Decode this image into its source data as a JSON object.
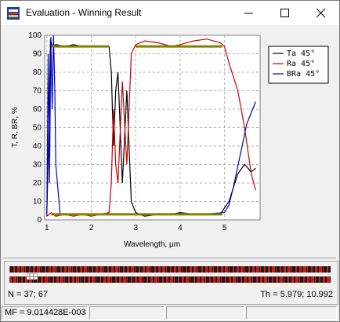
{
  "window": {
    "title": "Evaluation - Winning Result",
    "minimize_icon": "minimize-icon",
    "maximize_icon": "maximize-icon",
    "close_icon": "close-icon"
  },
  "chart_data": {
    "type": "line",
    "xlabel": "Wavelength, µm",
    "ylabel": "T, R, BR, %",
    "xlim": [
      0.95,
      5.8
    ],
    "ylim": [
      0,
      100
    ],
    "x_ticks": [
      "1",
      "2",
      "3",
      "4",
      "5"
    ],
    "y_ticks": [
      "0",
      "10",
      "20",
      "30",
      "40",
      "50",
      "60",
      "70",
      "80",
      "90",
      "100"
    ],
    "grid": true,
    "legend_position": "top-right",
    "series": [
      {
        "name": "Ta 45°",
        "color": "#000000",
        "points": [
          [
            1.0,
            3
          ],
          [
            1.05,
            55
          ],
          [
            1.08,
            98
          ],
          [
            1.12,
            94
          ],
          [
            1.2,
            95
          ],
          [
            1.4,
            94
          ],
          [
            1.6,
            95
          ],
          [
            1.8,
            94
          ],
          [
            2.0,
            94
          ],
          [
            2.2,
            94
          ],
          [
            2.4,
            94
          ],
          [
            2.45,
            80
          ],
          [
            2.5,
            40
          ],
          [
            2.55,
            70
          ],
          [
            2.6,
            80
          ],
          [
            2.7,
            20
          ],
          [
            2.8,
            70
          ],
          [
            2.85,
            40
          ],
          [
            2.9,
            10
          ],
          [
            3.0,
            4
          ],
          [
            3.2,
            2
          ],
          [
            3.5,
            3
          ],
          [
            3.8,
            3
          ],
          [
            4.0,
            4
          ],
          [
            4.3,
            3
          ],
          [
            4.6,
            3
          ],
          [
            4.9,
            3
          ],
          [
            5.1,
            10
          ],
          [
            5.3,
            25
          ],
          [
            5.45,
            30
          ],
          [
            5.6,
            26
          ],
          [
            5.7,
            28
          ]
        ]
      },
      {
        "name": "Ra 45°",
        "color": "#cc0000",
        "points": [
          [
            1.0,
            2
          ],
          [
            1.1,
            4
          ],
          [
            1.2,
            2
          ],
          [
            1.4,
            3
          ],
          [
            1.6,
            2
          ],
          [
            1.8,
            3
          ],
          [
            2.0,
            2
          ],
          [
            2.2,
            3
          ],
          [
            2.4,
            4
          ],
          [
            2.45,
            20
          ],
          [
            2.5,
            60
          ],
          [
            2.55,
            30
          ],
          [
            2.6,
            20
          ],
          [
            2.7,
            75
          ],
          [
            2.8,
            30
          ],
          [
            2.85,
            60
          ],
          [
            2.9,
            90
          ],
          [
            3.0,
            95
          ],
          [
            3.2,
            97
          ],
          [
            3.5,
            96
          ],
          [
            3.8,
            94
          ],
          [
            4.0,
            95
          ],
          [
            4.3,
            97
          ],
          [
            4.6,
            98
          ],
          [
            4.9,
            96
          ],
          [
            5.0,
            94
          ],
          [
            5.1,
            85
          ],
          [
            5.3,
            70
          ],
          [
            5.45,
            50
          ],
          [
            5.6,
            25
          ],
          [
            5.7,
            16
          ]
        ]
      },
      {
        "name": "BRa 45°",
        "color": "#0000cc",
        "points": [
          [
            1.0,
            2
          ],
          [
            1.03,
            90
          ],
          [
            1.06,
            20
          ],
          [
            1.09,
            99
          ],
          [
            1.12,
            60
          ],
          [
            1.15,
            100
          ],
          [
            1.18,
            70
          ],
          [
            1.2,
            30
          ],
          [
            1.3,
            3
          ],
          [
            2.0,
            3
          ],
          [
            3.0,
            3
          ],
          [
            4.0,
            3
          ],
          [
            4.5,
            3
          ],
          [
            5.0,
            4
          ],
          [
            5.1,
            8
          ],
          [
            5.2,
            18
          ],
          [
            5.35,
            35
          ],
          [
            5.5,
            52
          ],
          [
            5.7,
            64
          ]
        ]
      },
      {
        "name": "Target T",
        "color": "#808000",
        "points": [
          [
            1.1,
            94
          ],
          [
            2.4,
            94
          ]
        ]
      },
      {
        "name": "Target R",
        "color": "#808000",
        "points": [
          [
            3.0,
            94
          ],
          [
            4.95,
            94
          ]
        ]
      },
      {
        "name": "Target low",
        "color": "#808000",
        "points": [
          [
            1.1,
            3
          ],
          [
            4.95,
            3
          ]
        ]
      }
    ]
  },
  "legend": {
    "items": [
      {
        "label": "Ta 45°",
        "color": "#000000"
      },
      {
        "label": "Ra 45°",
        "color": "#cc0000"
      },
      {
        "label": "BRa 45°",
        "color": "#0000cc"
      }
    ]
  },
  "layers_panel": {
    "n_label": "N = 37; 67",
    "th_label": "Th = 5.979; 10.992"
  },
  "status": {
    "mf": "MF = 9.014428E-003",
    "cells": [
      "",
      "",
      "",
      ""
    ]
  }
}
